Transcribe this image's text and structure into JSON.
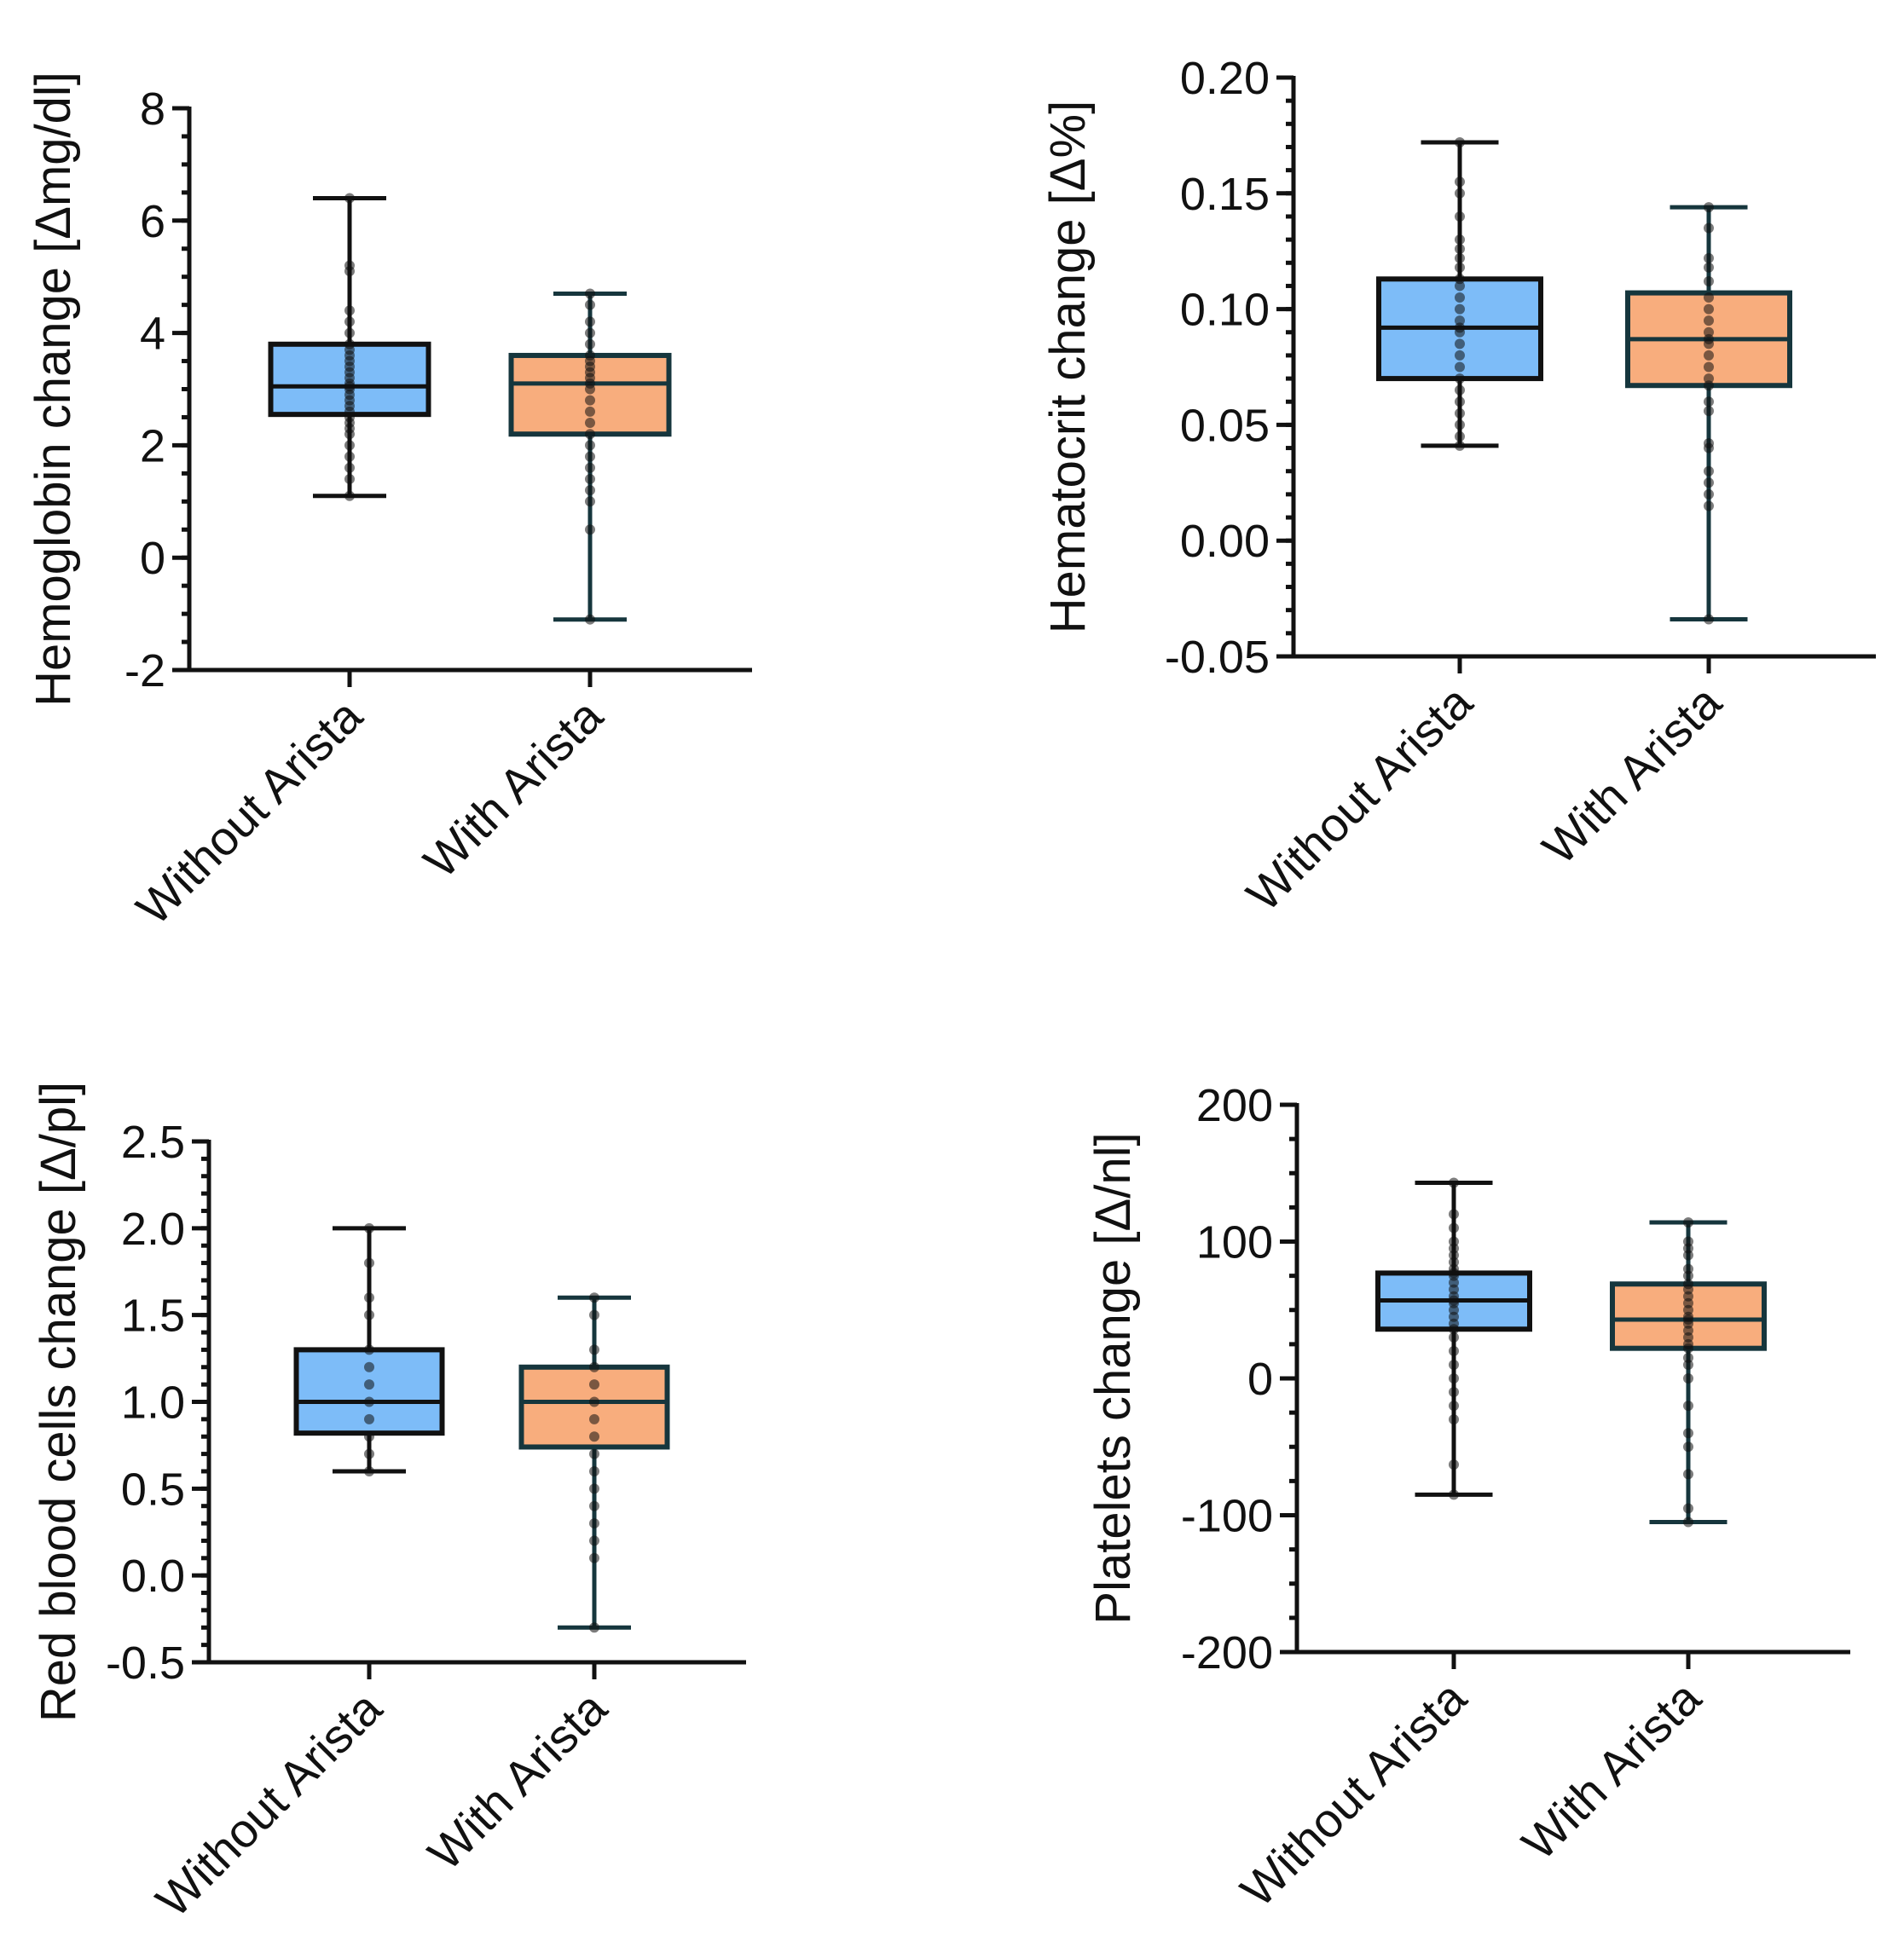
{
  "colors": {
    "without_fill": "#7dbcf8",
    "without_stroke": "#111111",
    "with_fill": "#f8ad7d",
    "with_stroke": "#16363d",
    "dot": "#111111"
  },
  "chart_data": [
    {
      "id": "hemoglobin",
      "type": "box",
      "ylabel": "Hemoglobin change [Δmg/dl]",
      "categories": [
        "Without Arista",
        "With Arista"
      ],
      "ylim": [
        -2,
        8
      ],
      "yticks": [
        "-2",
        "0",
        "2",
        "4",
        "6",
        "8"
      ],
      "yticks_values": [
        -2,
        0,
        2,
        4,
        6,
        8
      ],
      "minor_step": 0.5,
      "boxes": [
        {
          "name": "Without Arista",
          "min": 1.1,
          "q1": 2.55,
          "median": 3.05,
          "q3": 3.8,
          "max": 6.4,
          "points": [
            1.1,
            1.4,
            1.6,
            1.8,
            2.0,
            2.2,
            2.3,
            2.4,
            2.5,
            2.6,
            2.7,
            2.8,
            2.9,
            3.0,
            3.05,
            3.1,
            3.2,
            3.3,
            3.4,
            3.5,
            3.6,
            3.7,
            3.8,
            4.0,
            4.2,
            4.4,
            5.1,
            5.2,
            6.4
          ]
        },
        {
          "name": "With Arista",
          "min": -1.1,
          "q1": 2.2,
          "median": 3.1,
          "q3": 3.6,
          "max": 4.7,
          "points": [
            -1.1,
            0.5,
            1.0,
            1.2,
            1.4,
            1.6,
            1.8,
            2.0,
            2.2,
            2.4,
            2.6,
            2.8,
            3.0,
            3.1,
            3.2,
            3.3,
            3.4,
            3.5,
            3.6,
            3.8,
            4.0,
            4.2,
            4.5,
            4.7
          ]
        }
      ]
    },
    {
      "id": "hematocrit",
      "type": "box",
      "ylabel": "Hematocrit change [Δ%]",
      "categories": [
        "Without Arista",
        "With Arista"
      ],
      "ylim": [
        -0.05,
        0.2
      ],
      "yticks": [
        "-0.05",
        "0.00",
        "0.05",
        "0.10",
        "0.15",
        "0.20"
      ],
      "yticks_values": [
        -0.05,
        0.0,
        0.05,
        0.1,
        0.15,
        0.2
      ],
      "minor_step": 0.01,
      "boxes": [
        {
          "name": "Without Arista",
          "min": 0.041,
          "q1": 0.07,
          "median": 0.092,
          "q3": 0.113,
          "max": 0.172,
          "points": [
            0.041,
            0.045,
            0.05,
            0.055,
            0.06,
            0.065,
            0.07,
            0.075,
            0.08,
            0.085,
            0.09,
            0.092,
            0.095,
            0.1,
            0.105,
            0.11,
            0.113,
            0.118,
            0.122,
            0.126,
            0.13,
            0.14,
            0.15,
            0.155,
            0.172
          ]
        },
        {
          "name": "With Arista",
          "min": -0.034,
          "q1": 0.067,
          "median": 0.087,
          "q3": 0.107,
          "max": 0.144,
          "points": [
            -0.034,
            0.015,
            0.02,
            0.025,
            0.03,
            0.04,
            0.042,
            0.056,
            0.06,
            0.067,
            0.07,
            0.075,
            0.08,
            0.085,
            0.087,
            0.09,
            0.095,
            0.1,
            0.105,
            0.112,
            0.118,
            0.122,
            0.135,
            0.144
          ]
        }
      ]
    },
    {
      "id": "rbc",
      "type": "box",
      "ylabel": "Red blood cells change [Δ/pl]",
      "categories": [
        "Without Arista",
        "With Arista"
      ],
      "ylim": [
        -0.5,
        2.5
      ],
      "yticks": [
        "-0.5",
        "0.0",
        "0.5",
        "1.0",
        "1.5",
        "2.0",
        "2.5"
      ],
      "yticks_values": [
        -0.5,
        0.0,
        0.5,
        1.0,
        1.5,
        2.0,
        2.5
      ],
      "minor_step": 0.1,
      "boxes": [
        {
          "name": "Without Arista",
          "min": 0.6,
          "q1": 0.82,
          "median": 1.0,
          "q3": 1.3,
          "max": 2.0,
          "points": [
            0.6,
            0.7,
            0.8,
            0.9,
            1.0,
            1.1,
            1.2,
            1.3,
            1.5,
            1.6,
            1.8,
            2.0
          ]
        },
        {
          "name": "With Arista",
          "min": -0.3,
          "q1": 0.74,
          "median": 1.0,
          "q3": 1.2,
          "max": 1.6,
          "points": [
            -0.3,
            0.1,
            0.2,
            0.3,
            0.4,
            0.5,
            0.6,
            0.7,
            0.8,
            0.9,
            1.0,
            1.1,
            1.2,
            1.3,
            1.5,
            1.6
          ]
        }
      ]
    },
    {
      "id": "platelets",
      "type": "box",
      "ylabel": "Platelets change [Δ/nl]",
      "categories": [
        "Without Arista",
        "With Arista"
      ],
      "ylim": [
        -200,
        200
      ],
      "yticks": [
        "-200",
        "-100",
        "0",
        "100",
        "200"
      ],
      "yticks_values": [
        -200,
        -100,
        0,
        100,
        200
      ],
      "minor_step": 25,
      "boxes": [
        {
          "name": "Without Arista",
          "min": -85,
          "q1": 36,
          "median": 57,
          "q3": 77,
          "max": 143,
          "points": [
            -85,
            -63,
            -30,
            -20,
            -10,
            0,
            10,
            20,
            30,
            36,
            40,
            45,
            50,
            55,
            57,
            60,
            65,
            70,
            75,
            77,
            80,
            85,
            90,
            95,
            100,
            110,
            120,
            143
          ]
        },
        {
          "name": "With Arista",
          "min": -105,
          "q1": 22,
          "median": 43,
          "q3": 69,
          "max": 114,
          "points": [
            -105,
            -95,
            -70,
            -50,
            -40,
            -20,
            0,
            10,
            15,
            22,
            25,
            30,
            35,
            40,
            43,
            45,
            50,
            55,
            60,
            65,
            69,
            75,
            80,
            90,
            95,
            100,
            114
          ]
        }
      ]
    }
  ]
}
